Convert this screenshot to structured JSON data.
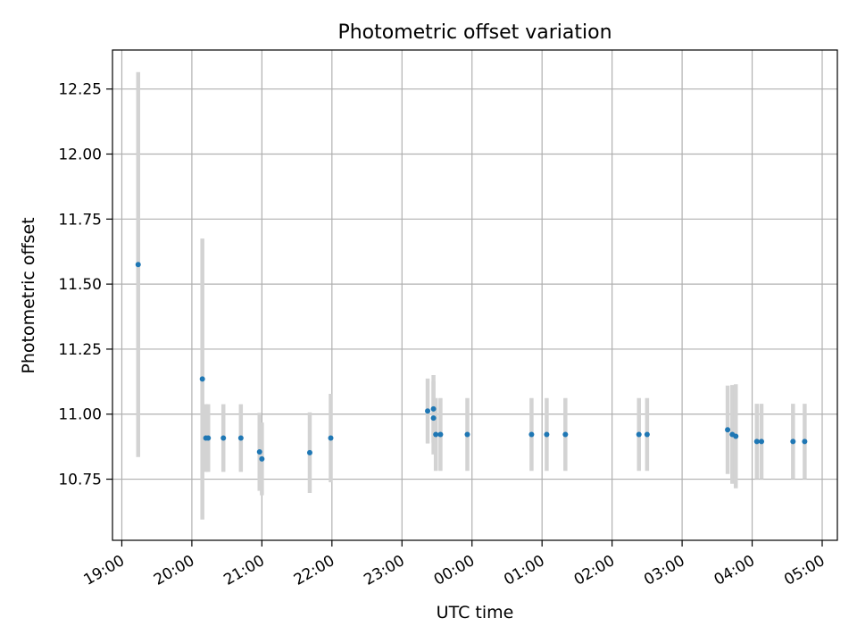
{
  "chart_data": {
    "type": "scatter",
    "title": "Photometric offset variation",
    "xlabel": "UTC time",
    "ylabel": "Photometric offset",
    "grid": true,
    "legend": "none",
    "x_range": [
      "18:52",
      "05:13"
    ],
    "ylim": [
      10.515,
      12.4
    ],
    "x_ticks": [
      "19:00",
      "20:00",
      "21:00",
      "22:00",
      "23:00",
      "00:00",
      "01:00",
      "02:00",
      "03:00",
      "04:00",
      "05:00"
    ],
    "y_ticks": [
      "10.75",
      "11.00",
      "11.25",
      "11.50",
      "11.75",
      "12.00",
      "12.25"
    ],
    "colors": {
      "point": "#1f77b4",
      "errorbar": "#d3d3d3",
      "grid": "#b0b0b0"
    },
    "series": [
      {
        "points": [
          {
            "x": "19:14",
            "y": 11.575,
            "err": 0.74
          },
          {
            "x": "20:09",
            "y": 11.135,
            "err": 0.54
          },
          {
            "x": "20:12",
            "y": 10.908,
            "err": 0.13
          },
          {
            "x": "20:14",
            "y": 10.908,
            "err": 0.13
          },
          {
            "x": "20:27",
            "y": 10.908,
            "err": 0.13
          },
          {
            "x": "20:42",
            "y": 10.908,
            "err": 0.13
          },
          {
            "x": "20:58",
            "y": 10.855,
            "err": 0.15
          },
          {
            "x": "21:00",
            "y": 10.828,
            "err": 0.14
          },
          {
            "x": "21:41",
            "y": 10.852,
            "err": 0.155
          },
          {
            "x": "21:59",
            "y": 10.908,
            "err": 0.17
          },
          {
            "x": "23:22",
            "y": 11.012,
            "err": 0.125
          },
          {
            "x": "23:27",
            "y": 11.02,
            "err": 0.13
          },
          {
            "x": "23:27",
            "y": 10.985,
            "err": 0.14
          },
          {
            "x": "23:29",
            "y": 10.922,
            "err": 0.14
          },
          {
            "x": "23:33",
            "y": 10.922,
            "err": 0.14
          },
          {
            "x": "23:56",
            "y": 10.922,
            "err": 0.14
          },
          {
            "x": "00:51",
            "y": 10.922,
            "err": 0.14
          },
          {
            "x": "01:04",
            "y": 10.922,
            "err": 0.14
          },
          {
            "x": "01:20",
            "y": 10.922,
            "err": 0.14
          },
          {
            "x": "02:23",
            "y": 10.922,
            "err": 0.14
          },
          {
            "x": "02:30",
            "y": 10.922,
            "err": 0.14
          },
          {
            "x": "03:39",
            "y": 10.94,
            "err": 0.17
          },
          {
            "x": "03:43",
            "y": 10.922,
            "err": 0.19
          },
          {
            "x": "03:46",
            "y": 10.915,
            "err": 0.2
          },
          {
            "x": "04:04",
            "y": 10.895,
            "err": 0.145
          },
          {
            "x": "04:08",
            "y": 10.895,
            "err": 0.145
          },
          {
            "x": "04:35",
            "y": 10.895,
            "err": 0.145
          },
          {
            "x": "04:45",
            "y": 10.895,
            "err": 0.145
          }
        ]
      }
    ]
  }
}
